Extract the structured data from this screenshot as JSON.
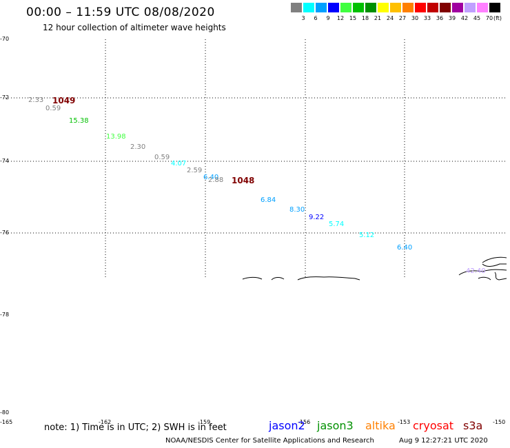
{
  "header": {
    "title": "00:00 – 11:59 UTC 08/08/2020",
    "subtitle": "12 hour collection of altimeter wave heights"
  },
  "legend": {
    "unit": "(ft)",
    "swatches": [
      {
        "color": "#808080",
        "label": "3"
      },
      {
        "color": "#00ffff",
        "label": "6"
      },
      {
        "color": "#00a0ff",
        "label": "9"
      },
      {
        "color": "#0000ff",
        "label": "12"
      },
      {
        "color": "#40ff40",
        "label": "15"
      },
      {
        "color": "#00c000",
        "label": "18"
      },
      {
        "color": "#009000",
        "label": "21"
      },
      {
        "color": "#ffff00",
        "label": "24"
      },
      {
        "color": "#ffc000",
        "label": "27"
      },
      {
        "color": "#ff8000",
        "label": "30"
      },
      {
        "color": "#ff0000",
        "label": "33"
      },
      {
        "color": "#c00000",
        "label": "36"
      },
      {
        "color": "#800000",
        "label": "39"
      },
      {
        "color": "#a000a0",
        "label": "42"
      },
      {
        "color": "#c0a0ff",
        "label": "45"
      },
      {
        "color": "#ff80ff",
        "label": "70"
      },
      {
        "color": "#000000",
        "label": ""
      }
    ]
  },
  "axes": {
    "latitudes": [
      "-70",
      "-72",
      "-74",
      "-76",
      "-78",
      "-80"
    ],
    "longitudes": [
      "-165",
      "-162",
      "-159",
      "-156",
      "-153",
      "-150"
    ]
  },
  "observations": [
    {
      "text": "2.33",
      "color": "#808080"
    },
    {
      "text": "0.59",
      "color": "#808080"
    },
    {
      "text": "15.38",
      "color": "#00c000"
    },
    {
      "text": "13.98",
      "color": "#40ff40"
    },
    {
      "text": "2.30",
      "color": "#808080"
    },
    {
      "text": "0.59",
      "color": "#808080"
    },
    {
      "text": "4.07",
      "color": "#00ffff"
    },
    {
      "text": "2.59",
      "color": "#808080"
    },
    {
      "text": "6.40",
      "color": "#00a0ff"
    },
    {
      "text": "2.88",
      "color": "#808080"
    },
    {
      "text": "6.84",
      "color": "#00a0ff"
    },
    {
      "text": "8.30",
      "color": "#00a0ff"
    },
    {
      "text": "9.22",
      "color": "#0000ff"
    },
    {
      "text": "5.74",
      "color": "#00ffff"
    },
    {
      "text": "5.12",
      "color": "#00ffff"
    },
    {
      "text": "6.40",
      "color": "#00a0ff"
    },
    {
      "text": "42.40",
      "color": "#c0a0ff"
    }
  ],
  "pressure_labels": [
    "1049",
    "1048"
  ],
  "footer": {
    "note": "note: 1) Time is in UTC; 2) SWH is in feet",
    "satellites": [
      {
        "name": "jason2",
        "color": "#0000ff"
      },
      {
        "name": "jason3",
        "color": "#009000"
      },
      {
        "name": "altika",
        "color": "#ff8000"
      },
      {
        "name": "cryosat",
        "color": "#ff0000"
      },
      {
        "name": "s3a",
        "color": "#800000"
      }
    ],
    "credit": "NOAA/NESDIS Center for Satellite Applications and Research",
    "timestamp": "Aug  9 12:27:21 UTC 2020"
  }
}
